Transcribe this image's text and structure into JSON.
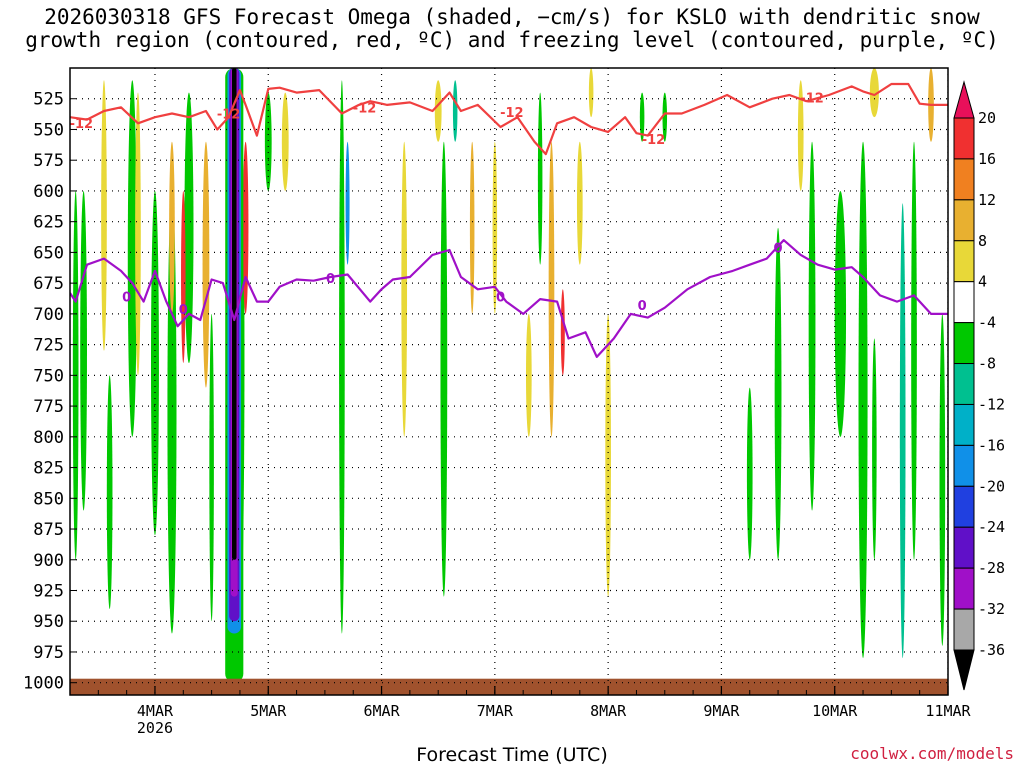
{
  "chart_data": {
    "type": "heatmap",
    "title": "2026030318 GFS Forecast Omega (shaded, −cm/s) for KSLO with dendritic snow\ngrowth region (contoured, red, ºC) and freezing level (contoured, purple, ºC)",
    "xlabel": "Forecast Time (UTC)",
    "x_ticks": [
      "4MAR",
      "5MAR",
      "6MAR",
      "7MAR",
      "8MAR",
      "9MAR",
      "10MAR",
      "11MAR"
    ],
    "x_tick_sublabel": "2026",
    "y_ticks": [
      525,
      550,
      575,
      600,
      625,
      650,
      675,
      700,
      725,
      750,
      775,
      800,
      825,
      850,
      875,
      900,
      925,
      950,
      975,
      1000
    ],
    "y_range_hPa": [
      500,
      1010
    ],
    "x_range_days": [
      0,
      7.75
    ],
    "colorbar": {
      "levels": [
        20,
        16,
        12,
        8,
        4,
        -4,
        -8,
        -12,
        -16,
        -20,
        -24,
        -28,
        -32,
        -36
      ],
      "colors": [
        "#e8105a",
        "#f03030",
        "#f08020",
        "#e8b030",
        "#e8d838",
        "#ffffff",
        "#00c800",
        "#00c090",
        "#00b0c8",
        "#1090e8",
        "#2040e0",
        "#6010c8",
        "#a010c8",
        "#a8a8a8",
        "#000000"
      ]
    },
    "dgz_contour": {
      "label": "-12",
      "color": "#f04040",
      "x": [
        0,
        0.15,
        0.3,
        0.45,
        0.6,
        0.75,
        0.9,
        1.05,
        1.2,
        1.3,
        1.4,
        1.5,
        1.55,
        1.65,
        1.75,
        1.85,
        2.0,
        2.2,
        2.4,
        2.55,
        2.65,
        2.8,
        3.0,
        3.2,
        3.35,
        3.45,
        3.6,
        3.8,
        3.95,
        4.1,
        4.2,
        4.3,
        4.45,
        4.6,
        4.75,
        4.9,
        5.0,
        5.1,
        5.25,
        5.4,
        5.6,
        5.8,
        6.0,
        6.2,
        6.35,
        6.5,
        6.7,
        6.9,
        7.0,
        7.1,
        7.25,
        7.4,
        7.5,
        7.6,
        7.75
      ],
      "y": [
        540,
        542,
        535,
        532,
        545,
        540,
        537,
        540,
        535,
        550,
        540,
        518,
        530,
        555,
        517,
        516,
        520,
        518,
        537,
        530,
        527,
        530,
        528,
        535,
        520,
        535,
        530,
        548,
        540,
        560,
        570,
        545,
        540,
        548,
        552,
        540,
        553,
        555,
        537,
        537,
        530,
        522,
        532,
        525,
        522,
        527,
        522,
        515,
        519,
        522,
        513,
        513,
        529,
        530,
        530
      ],
      "label_positions": [
        [
          0.1,
          549
        ],
        [
          1.4,
          541
        ],
        [
          2.6,
          536
        ],
        [
          3.9,
          540
        ],
        [
          5.15,
          562
        ],
        [
          6.55,
          528
        ]
      ]
    },
    "freezing_contour": {
      "label": "0",
      "color": "#a010c8",
      "x": [
        0,
        0.05,
        0.15,
        0.3,
        0.45,
        0.55,
        0.65,
        0.75,
        0.85,
        0.95,
        1.05,
        1.15,
        1.25,
        1.35,
        1.45,
        1.55,
        1.65,
        1.75,
        1.85,
        2.0,
        2.15,
        2.3,
        2.45,
        2.65,
        2.75,
        2.85,
        3.0,
        3.2,
        3.35,
        3.45,
        3.6,
        3.75,
        3.85,
        4.0,
        4.15,
        4.3,
        4.4,
        4.55,
        4.65,
        4.8,
        4.95,
        5.1,
        5.25,
        5.45,
        5.65,
        5.85,
        6.0,
        6.15,
        6.3,
        6.45,
        6.6,
        6.75,
        6.9,
        7.0,
        7.15,
        7.3,
        7.45,
        7.6,
        7.75
      ],
      "y": [
        683,
        690,
        660,
        655,
        665,
        675,
        690,
        665,
        690,
        710,
        700,
        705,
        672,
        675,
        705,
        670,
        690,
        690,
        678,
        672,
        673,
        670,
        668,
        690,
        680,
        672,
        670,
        652,
        648,
        670,
        680,
        678,
        690,
        700,
        688,
        690,
        720,
        715,
        735,
        720,
        700,
        703,
        695,
        680,
        670,
        665,
        660,
        655,
        640,
        652,
        660,
        664,
        662,
        670,
        685,
        690,
        685,
        700,
        700
      ],
      "label_positions": [
        [
          0.5,
          690
        ],
        [
          1.0,
          700
        ],
        [
          2.3,
          675
        ],
        [
          3.8,
          690
        ],
        [
          5.05,
          697
        ],
        [
          6.25,
          650
        ]
      ]
    }
  },
  "credit": "coolwx.com/models",
  "colors": {
    "ground": "#a0522d",
    "grid": "#000000"
  }
}
